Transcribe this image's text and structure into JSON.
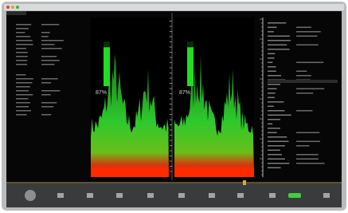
{
  "meters": [
    {
      "label": "87%",
      "level": 87
    },
    {
      "label": "87%",
      "level": 87
    }
  ]
}
